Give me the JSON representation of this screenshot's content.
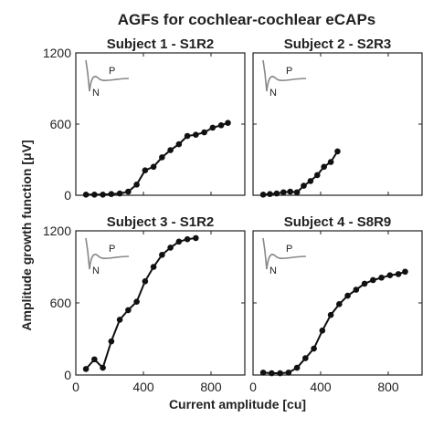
{
  "chart_data": {
    "type": "line",
    "title": "AGFs for cochlear-cochlear eCAPs",
    "xlabel": "Current amplitude [cu]",
    "ylabel": "Amplitude growth function [μV]",
    "xlim": [
      0,
      1000
    ],
    "ylim": [
      0,
      1200
    ],
    "xticks": [
      "0",
      "400",
      "800"
    ],
    "yticks": [
      "0",
      "600",
      "1200"
    ],
    "inset_labels": {
      "peak": "P",
      "trough": "N"
    },
    "colors": {
      "data": "#111111",
      "inset": "#888888",
      "axes": "#222222"
    },
    "panels": [
      {
        "title": "Subject 1 - S1R2",
        "points": [
          [
            60,
            5
          ],
          [
            110,
            5
          ],
          [
            160,
            5
          ],
          [
            210,
            10
          ],
          [
            260,
            15
          ],
          [
            310,
            30
          ],
          [
            360,
            90
          ],
          [
            410,
            210
          ],
          [
            460,
            240
          ],
          [
            510,
            320
          ],
          [
            560,
            380
          ],
          [
            610,
            430
          ],
          [
            660,
            500
          ],
          [
            710,
            510
          ],
          [
            760,
            530
          ],
          [
            810,
            570
          ],
          [
            860,
            590
          ],
          [
            900,
            610
          ]
        ]
      },
      {
        "title": "Subject 2 - S2R3",
        "points": [
          [
            60,
            5
          ],
          [
            100,
            10
          ],
          [
            140,
            15
          ],
          [
            180,
            25
          ],
          [
            220,
            30
          ],
          [
            260,
            25
          ],
          [
            300,
            80
          ],
          [
            340,
            120
          ],
          [
            380,
            170
          ],
          [
            420,
            240
          ],
          [
            460,
            280
          ],
          [
            500,
            370
          ]
        ]
      },
      {
        "title": "Subject 3 - S1R2",
        "points": [
          [
            60,
            50
          ],
          [
            110,
            130
          ],
          [
            160,
            60
          ],
          [
            210,
            280
          ],
          [
            260,
            460
          ],
          [
            310,
            540
          ],
          [
            360,
            610
          ],
          [
            410,
            780
          ],
          [
            460,
            900
          ],
          [
            510,
            1000
          ],
          [
            560,
            1060
          ],
          [
            610,
            1110
          ],
          [
            660,
            1130
          ],
          [
            710,
            1140
          ]
        ]
      },
      {
        "title": "Subject 4 - S8R9",
        "points": [
          [
            60,
            20
          ],
          [
            110,
            15
          ],
          [
            160,
            15
          ],
          [
            210,
            20
          ],
          [
            260,
            60
          ],
          [
            310,
            140
          ],
          [
            360,
            220
          ],
          [
            410,
            370
          ],
          [
            460,
            500
          ],
          [
            510,
            590
          ],
          [
            560,
            660
          ],
          [
            610,
            710
          ],
          [
            660,
            760
          ],
          [
            710,
            790
          ],
          [
            760,
            810
          ],
          [
            810,
            830
          ],
          [
            860,
            840
          ],
          [
            900,
            860
          ]
        ]
      }
    ]
  }
}
